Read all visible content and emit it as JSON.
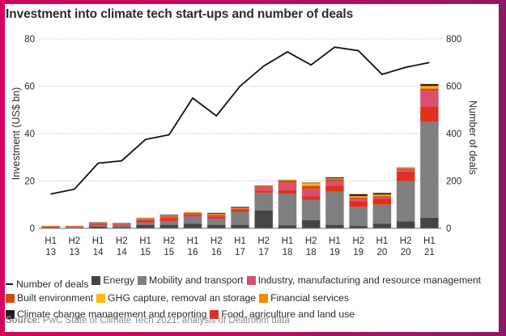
{
  "colors": {
    "frame_start": "#d4035f",
    "frame_end": "#8a1a62",
    "deals_line": "#111111"
  },
  "source": {
    "label": "Source:",
    "text": " PwC State of Climate Tech 2021, analysis of Dealroom data"
  },
  "chart_data": {
    "type": "bar",
    "stacked": true,
    "title": "Investment into climate tech start-ups and number of deals",
    "xlabel": "",
    "ylabel": "Investment (US$ bn)",
    "y2label": "Number of deals",
    "ylim": [
      0,
      80
    ],
    "y2lim": [
      0,
      800
    ],
    "yticks": [
      0,
      20,
      40,
      60,
      80
    ],
    "y2ticks": [
      0,
      200,
      400,
      600,
      800
    ],
    "grid": true,
    "legend_position": "bottom",
    "categories": [
      [
        "H1",
        "13"
      ],
      [
        "H2",
        "13"
      ],
      [
        "H1",
        "14"
      ],
      [
        "H2",
        "14"
      ],
      [
        "H1",
        "15"
      ],
      [
        "H2",
        "15"
      ],
      [
        "H1",
        "16"
      ],
      [
        "H2",
        "16"
      ],
      [
        "H1",
        "17"
      ],
      [
        "H2",
        "17"
      ],
      [
        "H1",
        "18"
      ],
      [
        "H2",
        "18"
      ],
      [
        "H1",
        "19"
      ],
      [
        "H2",
        "19"
      ],
      [
        "H1",
        "20"
      ],
      [
        "H2",
        "20"
      ],
      [
        "H1",
        "21"
      ]
    ],
    "series": [
      {
        "name": "Energy",
        "color": "#454545",
        "values": [
          0.2,
          0.2,
          0.8,
          0.6,
          1.5,
          1.5,
          2.0,
          1.5,
          1.5,
          7.5,
          1.2,
          3.5,
          1.5,
          1.0,
          2.0,
          3.0,
          4.5
        ]
      },
      {
        "name": "Mobility and transport",
        "color": "#7f7f7f",
        "values": [
          0.1,
          0.2,
          0.6,
          0.5,
          1.0,
          1.6,
          3.0,
          2.5,
          5.5,
          7.5,
          13.5,
          8.5,
          14.0,
          8.0,
          8.0,
          17.0,
          40.5
        ]
      },
      {
        "name": "Industry, manufacturing and resource management",
        "color": "#db5070",
        "values": [
          0.1,
          0.1,
          0.3,
          0.3,
          0.5,
          0.6,
          0.6,
          0.6,
          0.3,
          1.5,
          3.0,
          3.0,
          2.0,
          1.0,
          0.5,
          0.8,
          6.5
        ]
      },
      {
        "name": "Built environment",
        "color": "#d24a0c",
        "values": [
          0.1,
          0.1,
          0.2,
          0.2,
          0.2,
          0.4,
          0.2,
          0.3,
          0.2,
          0.4,
          1.0,
          1.5,
          0.8,
          0.5,
          0.5,
          0.5,
          1.0
        ]
      },
      {
        "name": "GHG capture, removal an storage",
        "color": "#fdb813",
        "values": [
          0.1,
          0.05,
          0.1,
          0.1,
          0.05,
          0.1,
          0.3,
          0.1,
          0.1,
          0.1,
          0.1,
          0.8,
          0.1,
          0.3,
          0.3,
          0.1,
          0.6
        ]
      },
      {
        "name": "Financial services",
        "color": "#ee8c00",
        "values": [
          0.05,
          0.05,
          0.05,
          0.05,
          0.1,
          0.1,
          0.1,
          0.2,
          0.1,
          0.1,
          0.1,
          0.5,
          0.2,
          0.4,
          0.5,
          0.2,
          0.6
        ]
      },
      {
        "name": "Climate change management and reporting",
        "color": "#1e1e1e",
        "values": [
          0.0,
          0.0,
          0.05,
          0.05,
          0.1,
          0.3,
          0.0,
          0.4,
          0.4,
          0.1,
          0.1,
          0.1,
          0.5,
          0.8,
          0.7,
          0.2,
          0.8
        ]
      },
      {
        "name": "Food, agriculture and land use",
        "color": "#e0301e",
        "values": [
          0.4,
          0.4,
          0.5,
          0.5,
          1.0,
          1.2,
          0.7,
          1.0,
          1.0,
          1.0,
          1.5,
          1.5,
          2.5,
          2.5,
          2.5,
          4.0,
          6.5
        ]
      }
    ],
    "stack_order": [
      0,
      1,
      7,
      2,
      3,
      4,
      5,
      6
    ],
    "line": {
      "name": "Number of deals",
      "axis": "right",
      "color": "#111111",
      "values": [
        145,
        165,
        275,
        285,
        375,
        395,
        550,
        475,
        600,
        685,
        745,
        690,
        765,
        750,
        650,
        680,
        700
      ]
    }
  },
  "legend_rows": [
    [
      {
        "type": "line",
        "label": "Number of deals",
        "color": "#111111"
      },
      {
        "type": "box",
        "label": "Energy",
        "color": "#454545"
      },
      {
        "type": "box",
        "label": "Mobility and transport",
        "color": "#7f7f7f"
      },
      {
        "type": "box",
        "label": "Industry, manufacturing and resource management",
        "color": "#db5070"
      }
    ],
    [
      {
        "type": "box",
        "label": "Built environment",
        "color": "#d24a0c"
      },
      {
        "type": "box",
        "label": "GHG capture, removal an storage",
        "color": "#fdb813"
      },
      {
        "type": "box",
        "label": "Financial services",
        "color": "#ee8c00"
      }
    ],
    [
      {
        "type": "box",
        "label": "Climate change management and reporting",
        "color": "#1e1e1e"
      },
      {
        "type": "box",
        "label": "Food, agriculture and land use",
        "color": "#e0301e"
      }
    ]
  ]
}
